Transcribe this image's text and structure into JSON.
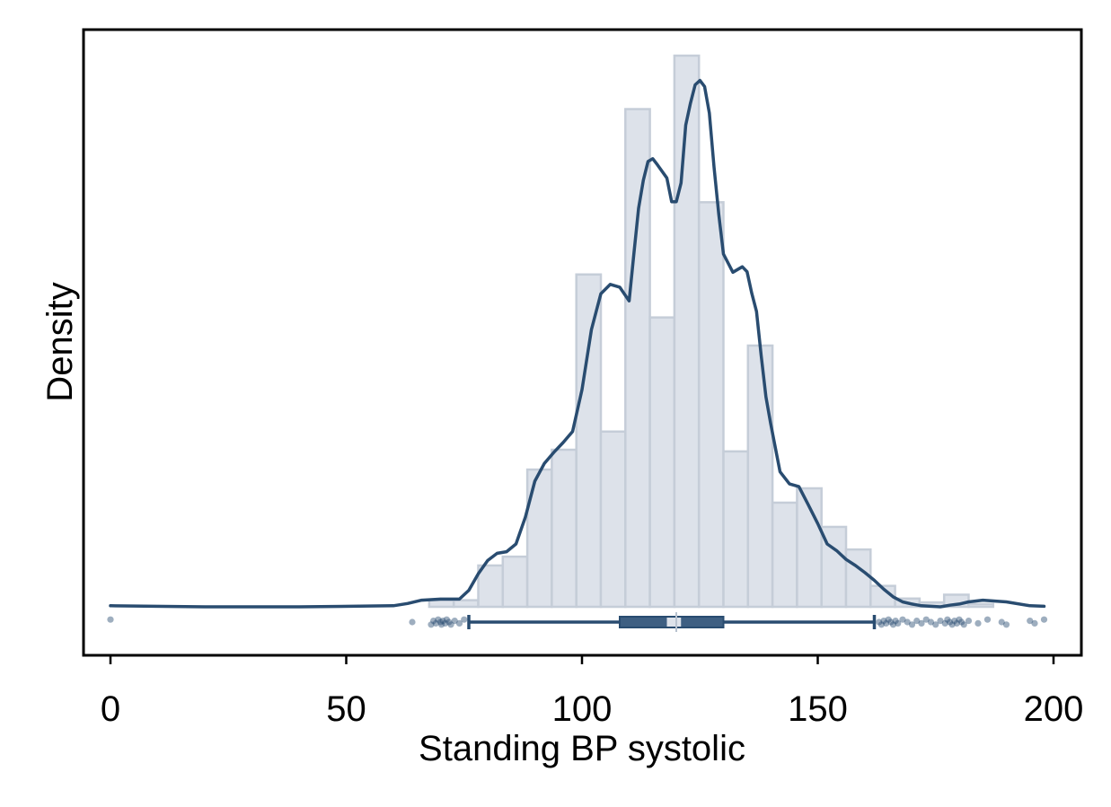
{
  "chart_data": {
    "type": "histogram",
    "title": "",
    "xlabel": "Standing BP systolic",
    "ylabel": "Density",
    "xlim": [
      -5,
      205
    ],
    "ylim": [
      0,
      1.02
    ],
    "x_ticks": [
      0,
      50,
      100,
      150,
      200
    ],
    "x_tick_labels": [
      "0",
      "50",
      "100",
      "150",
      "200"
    ],
    "grid": false,
    "legend": "none",
    "histogram": {
      "bin_width": 5.2,
      "bins": [
        {
          "start": 67.6,
          "end": 72.8,
          "density": 0.012
        },
        {
          "start": 72.8,
          "end": 78.0,
          "density": 0.012
        },
        {
          "start": 78.0,
          "end": 83.2,
          "density": 0.075
        },
        {
          "start": 83.2,
          "end": 88.4,
          "density": 0.091
        },
        {
          "start": 88.4,
          "end": 93.6,
          "density": 0.249
        },
        {
          "start": 93.6,
          "end": 98.8,
          "density": 0.285
        },
        {
          "start": 98.8,
          "end": 104.0,
          "density": 0.603
        },
        {
          "start": 104.0,
          "end": 109.2,
          "density": 0.318
        },
        {
          "start": 109.2,
          "end": 114.4,
          "density": 0.903
        },
        {
          "start": 114.4,
          "end": 119.6,
          "density": 0.525
        },
        {
          "start": 119.6,
          "end": 124.8,
          "density": 1.0
        },
        {
          "start": 124.8,
          "end": 130.0,
          "density": 0.734
        },
        {
          "start": 130.0,
          "end": 135.2,
          "density": 0.282
        },
        {
          "start": 135.2,
          "end": 140.4,
          "density": 0.474
        },
        {
          "start": 140.4,
          "end": 145.6,
          "density": 0.189
        },
        {
          "start": 145.6,
          "end": 150.8,
          "density": 0.215
        },
        {
          "start": 150.8,
          "end": 156.0,
          "density": 0.145
        },
        {
          "start": 156.0,
          "end": 161.2,
          "density": 0.104
        },
        {
          "start": 161.2,
          "end": 166.4,
          "density": 0.038
        },
        {
          "start": 166.4,
          "end": 171.6,
          "density": 0.015
        },
        {
          "start": 171.6,
          "end": 176.8,
          "density": 0.008
        },
        {
          "start": 176.8,
          "end": 182.0,
          "density": 0.022
        },
        {
          "start": 182.0,
          "end": 187.2,
          "density": 0.005
        }
      ]
    },
    "kde": {
      "x": [
        0,
        20,
        40,
        60,
        63,
        66,
        70,
        74,
        76,
        78,
        80,
        82,
        84,
        86,
        88,
        90,
        92,
        94,
        96,
        98,
        100,
        102,
        104,
        106,
        108,
        110,
        111,
        112,
        113,
        114,
        115,
        116,
        118,
        119,
        120,
        121,
        122,
        123,
        124,
        125,
        126,
        127,
        128,
        129,
        130,
        132,
        134,
        135,
        136,
        137,
        138,
        139,
        140,
        142,
        144,
        146,
        148,
        150,
        152,
        154,
        156,
        158,
        160,
        162,
        164,
        166,
        168,
        170,
        172,
        174,
        176,
        178,
        180,
        182,
        185,
        190,
        195,
        198
      ],
      "density": [
        0.002,
        0.0,
        0.0,
        0.002,
        0.006,
        0.012,
        0.014,
        0.014,
        0.03,
        0.06,
        0.084,
        0.097,
        0.1,
        0.114,
        0.163,
        0.228,
        0.26,
        0.28,
        0.298,
        0.318,
        0.394,
        0.503,
        0.568,
        0.585,
        0.58,
        0.555,
        0.641,
        0.723,
        0.774,
        0.808,
        0.813,
        0.802,
        0.778,
        0.735,
        0.735,
        0.769,
        0.874,
        0.914,
        0.947,
        0.955,
        0.944,
        0.896,
        0.798,
        0.712,
        0.64,
        0.607,
        0.617,
        0.608,
        0.569,
        0.536,
        0.456,
        0.381,
        0.333,
        0.245,
        0.223,
        0.218,
        0.185,
        0.151,
        0.114,
        0.102,
        0.086,
        0.075,
        0.062,
        0.048,
        0.032,
        0.018,
        0.009,
        0.005,
        0.002,
        0.001,
        0.0,
        0.003,
        0.005,
        0.009,
        0.012,
        0.009,
        0.002,
        0.001
      ]
    },
    "boxplot": {
      "whisker_low": 76,
      "q1": 108,
      "median": 120,
      "median_ci": [
        118,
        121
      ],
      "q3": 130,
      "whisker_high": 162,
      "outliers": [
        0,
        64,
        68,
        68.5,
        69,
        69.5,
        70,
        70.2,
        70.5,
        71,
        71.3,
        71.8,
        72.2,
        73,
        74,
        75,
        163,
        163.5,
        164,
        164.5,
        165,
        165.5,
        166,
        166.5,
        167,
        168,
        169,
        170,
        171,
        172,
        173,
        174,
        175,
        176,
        177,
        177.5,
        178,
        178.5,
        179,
        179.5,
        180,
        180.5,
        181,
        182,
        184,
        186,
        189,
        190,
        195,
        196,
        198
      ]
    },
    "colors": {
      "bar_fill": "#dde2ea",
      "bar_stroke": "#c5cdd8",
      "line": "#294c70",
      "box_fill": "#3e5f82",
      "outlier": "#294c70",
      "frame": "#000000"
    }
  }
}
